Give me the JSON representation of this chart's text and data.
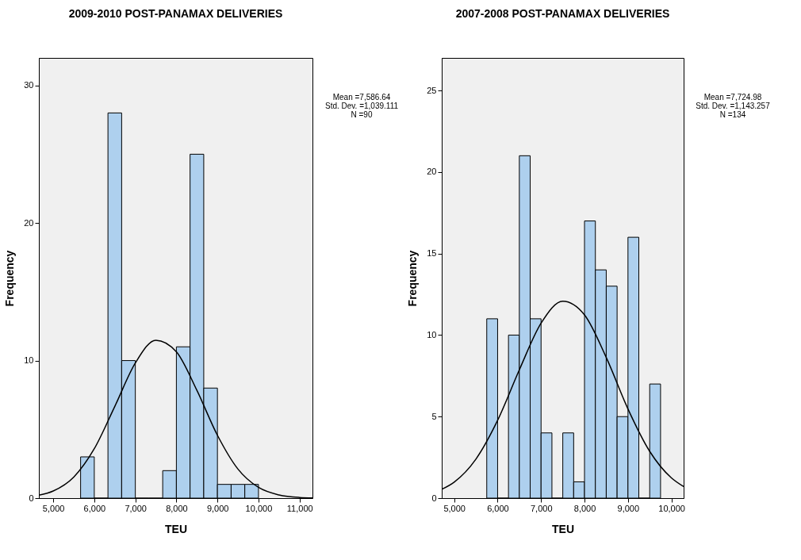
{
  "chart_data": [
    {
      "type": "histogram",
      "title": "2009-2010 POST-PANAMAX DELIVERIES",
      "xlabel": "TEU",
      "ylabel": "Frequency",
      "bins": [
        5666.67,
        6000,
        6333.33,
        6666.67,
        7000,
        7333.33,
        7666.67,
        8000,
        8333.33,
        8666.67,
        9000,
        9333.33,
        9666.67,
        10000
      ],
      "values": [
        3,
        0,
        28,
        10,
        0,
        0,
        2,
        11,
        25,
        8,
        1,
        1,
        1
      ],
      "color": "#aed0ee",
      "series": [
        {
          "type": "line",
          "color": "#000000",
          "x": [
            4650,
            5000,
            5500,
            6000,
            6500,
            7000,
            7500,
            8000,
            8500,
            9000,
            9500,
            10000,
            10500,
            11000,
            11315
          ],
          "values": [
            0.21,
            0.52,
            1.53,
            3.59,
            6.67,
            9.82,
            11.48,
            10.64,
            7.83,
            4.57,
            2.11,
            0.78,
            0.23,
            0.05,
            0.02
          ]
        }
      ],
      "xlim": [
        4650,
        11315
      ],
      "ylim": [
        0,
        32
      ],
      "xticks": [
        {
          "value": 5000,
          "label": "5,000"
        },
        {
          "value": 6000,
          "label": "6,000"
        },
        {
          "value": 7000,
          "label": "7,000"
        },
        {
          "value": 8000,
          "label": "8,000"
        },
        {
          "value": 9000,
          "label": "9,000"
        },
        {
          "value": 10000,
          "label": "10,000"
        },
        {
          "value": 11000,
          "label": "11,000"
        }
      ],
      "yticks": [
        0,
        10,
        20,
        30
      ],
      "annotations": [
        "Mean =7,586.64",
        "Std. Dev. =1,039.111",
        "N =90"
      ]
    },
    {
      "type": "histogram",
      "title": "2007-2008 POST-PANAMAX DELIVERIES",
      "xlabel": "TEU",
      "ylabel": "Frequency",
      "bins": [
        5750,
        6000,
        6250,
        6500,
        6750,
        7000,
        7250,
        7500,
        7750,
        8000,
        8250,
        8500,
        8750,
        9000,
        9250,
        9500,
        9750
      ],
      "values": [
        11,
        0,
        10,
        21,
        11,
        4,
        0,
        4,
        1,
        17,
        14,
        13,
        5,
        16,
        0,
        7
      ],
      "color": "#aed0ee",
      "series": [
        {
          "type": "line",
          "color": "#000000",
          "x": [
            4714,
            5000,
            5500,
            6000,
            6500,
            7000,
            7500,
            8000,
            8500,
            9000,
            9500,
            10000,
            10281
          ],
          "values": [
            0.54,
            0.98,
            2.39,
            4.77,
            7.87,
            10.73,
            12.08,
            11.24,
            8.63,
            5.47,
            2.87,
            1.24,
            0.71
          ]
        }
      ],
      "xlim": [
        4714,
        10281
      ],
      "ylim": [
        0,
        27
      ],
      "xticks": [
        {
          "value": 5000,
          "label": "5,000"
        },
        {
          "value": 6000,
          "label": "6,000"
        },
        {
          "value": 7000,
          "label": "7,000"
        },
        {
          "value": 8000,
          "label": "8,000"
        },
        {
          "value": 9000,
          "label": "9,000"
        },
        {
          "value": 10000,
          "label": "10,000"
        }
      ],
      "yticks": [
        0,
        5,
        10,
        15,
        20,
        25
      ],
      "annotations": [
        "Mean =7,724.98",
        "Std. Dev. =1,143.257",
        "N =134"
      ]
    }
  ]
}
